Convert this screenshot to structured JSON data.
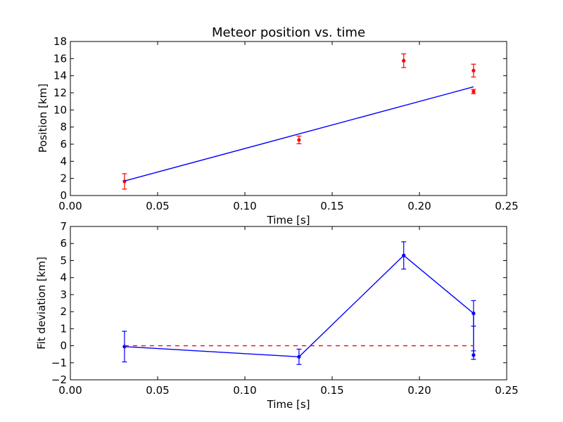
{
  "chart_data": [
    {
      "type": "scatter",
      "title": "Meteor position vs. time",
      "xlabel": "Time [s]",
      "ylabel": "Position [km]",
      "xlim": [
        0.0,
        0.25
      ],
      "ylim": [
        0,
        18
      ],
      "xticks": [
        "0.00",
        "0.05",
        "0.10",
        "0.15",
        "0.20",
        "0.25"
      ],
      "yticks": [
        "0",
        "2",
        "4",
        "6",
        "8",
        "10",
        "12",
        "14",
        "16",
        "18"
      ],
      "grid": false,
      "series": [
        {
          "kind": "errorbar",
          "color": "#ff0000",
          "points": [
            {
              "x": 0.031,
              "y": 1.65,
              "err": 0.9
            },
            {
              "x": 0.131,
              "y": 6.5,
              "err": 0.45
            },
            {
              "x": 0.191,
              "y": 15.75,
              "err": 0.8
            },
            {
              "x": 0.231,
              "y": 14.6,
              "err": 0.75
            },
            {
              "x": 0.231,
              "y": 12.15,
              "err": 0.25
            }
          ]
        },
        {
          "kind": "line",
          "color": "#0000ff",
          "points": [
            {
              "x": 0.031,
              "y": 1.7
            },
            {
              "x": 0.231,
              "y": 12.7
            }
          ]
        }
      ]
    },
    {
      "type": "line",
      "title": "",
      "xlabel": "Time [s]",
      "ylabel": "Fit deviation [km]",
      "xlim": [
        0.0,
        0.25
      ],
      "ylim": [
        -2,
        7
      ],
      "xticks": [
        "0.00",
        "0.05",
        "0.10",
        "0.15",
        "0.20",
        "0.25"
      ],
      "yticks": [
        "−2",
        "−1",
        "0",
        "1",
        "2",
        "3",
        "4",
        "5",
        "6",
        "7"
      ],
      "grid": false,
      "series": [
        {
          "kind": "errorbar-line",
          "color": "#0000ff",
          "points": [
            {
              "x": 0.031,
              "y": -0.05,
              "err": 0.9
            },
            {
              "x": 0.131,
              "y": -0.65,
              "err": 0.45
            },
            {
              "x": 0.191,
              "y": 5.3,
              "err": 0.8
            },
            {
              "x": 0.231,
              "y": 1.9,
              "err": 0.75
            },
            {
              "x": 0.231,
              "y": -0.55,
              "err": 0.25
            }
          ]
        },
        {
          "kind": "dashed-line",
          "color": "#ff0000",
          "points": [
            {
              "x": 0.031,
              "y": 0
            },
            {
              "x": 0.231,
              "y": 0
            }
          ]
        }
      ]
    }
  ]
}
